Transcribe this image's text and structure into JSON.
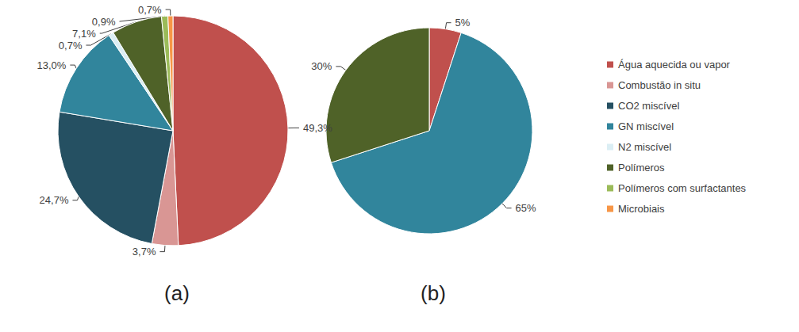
{
  "chart_data": [
    {
      "type": "pie",
      "title": "(a)",
      "categories": [
        "Água aquecida ou vapor",
        "Combustão in situ",
        "CO2 miscível",
        "GN miscível",
        "N2 miscível",
        "Polímeros",
        "Polímeros com surfactantes",
        "Microbiais"
      ],
      "values": [
        49.3,
        3.7,
        24.7,
        13.0,
        0.7,
        7.1,
        0.9,
        0.7
      ],
      "value_labels": [
        "49,3%",
        "3,7%",
        "24,7%",
        "13,0%",
        "0,7%",
        "7,1%",
        "0,9%",
        "0,7%"
      ],
      "colors": [
        "#c0504d",
        "#d99694",
        "#255062",
        "#31859c",
        "#dbeef4",
        "#4f6228",
        "#9bbb59",
        "#f79646"
      ],
      "data_labels": true,
      "legend": "right"
    },
    {
      "type": "pie",
      "title": "(b)",
      "categories": [
        "Água aquecida ou vapor",
        "GN miscível",
        "Polímeros"
      ],
      "values": [
        5,
        65,
        30
      ],
      "value_labels": [
        "5%",
        "65%",
        "30%"
      ],
      "colors": [
        "#c0504d",
        "#31859c",
        "#4f6228"
      ],
      "data_labels": true,
      "legend": "right"
    }
  ]
}
